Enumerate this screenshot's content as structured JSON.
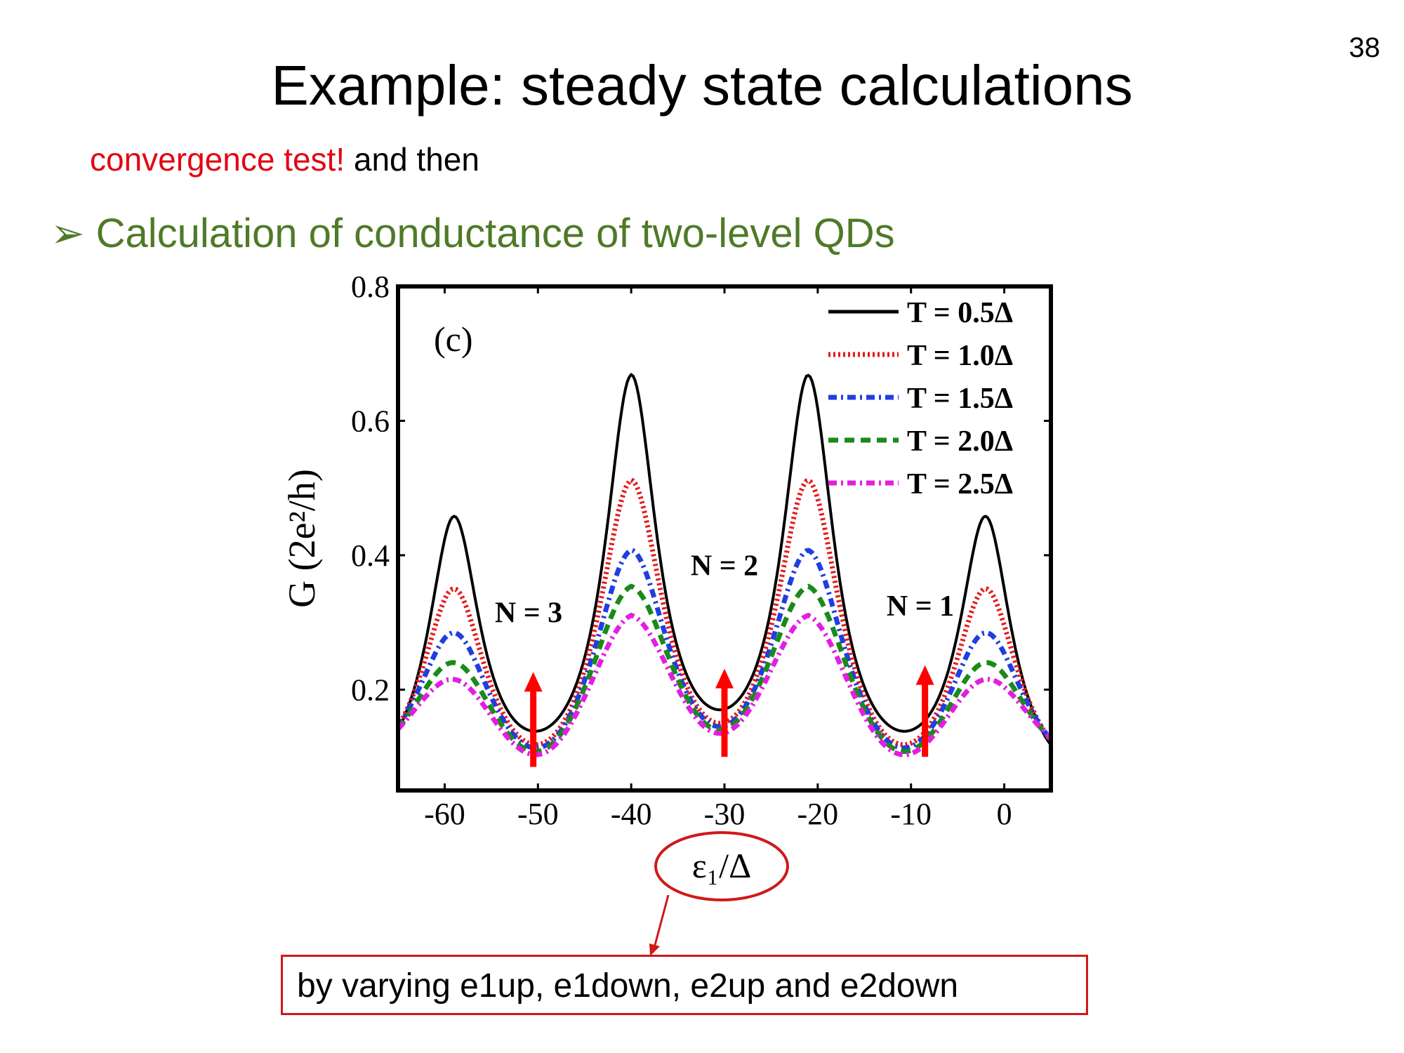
{
  "slide": {
    "number": "38",
    "title": "Example: steady state calculations",
    "note_red": "convergence test!",
    "note_rest": " and then",
    "bullet": "Calculation of conductance of two-level QDs",
    "caption": "by varying e1up, e1down, e2up and e2down"
  },
  "colors": {
    "red": "#e30613",
    "bullet_green": "#4f7a28",
    "box": "#d01919"
  },
  "chart_data": {
    "type": "line",
    "panel_label": "(c)",
    "xlabel": "ε₁/Δ",
    "ylabel": "G (2e²/h)",
    "xlim": [
      -65,
      5
    ],
    "ylim": [
      0.05,
      0.8
    ],
    "xticks": [
      -60,
      -50,
      -40,
      -30,
      -20,
      -10,
      0
    ],
    "yticks": [
      0.2,
      0.4,
      0.6,
      0.8
    ],
    "ytick_labels": [
      "0.2",
      "0.4",
      "0.6",
      "0.8"
    ],
    "legend_position": "top-right",
    "peak_centers": [
      -59,
      -40,
      -21,
      -2
    ],
    "series": [
      {
        "name": "T = 0.5Δ",
        "color": "#000000",
        "dash": "solid",
        "peaks": [
          0.48,
          0.68,
          0.68,
          0.48
        ],
        "valleys": [
          0.14,
          0.17,
          0.14
        ]
      },
      {
        "name": "T = 1.0Δ",
        "color": "#e41a1c",
        "dash": "dot",
        "peaks": [
          0.37,
          0.52,
          0.52,
          0.37
        ],
        "valleys": [
          0.12,
          0.15,
          0.12
        ]
      },
      {
        "name": "T = 1.5Δ",
        "color": "#1f3fe0",
        "dash": "dashdot",
        "peaks": [
          0.3,
          0.41,
          0.41,
          0.3
        ],
        "valleys": [
          0.115,
          0.145,
          0.115
        ]
      },
      {
        "name": "T = 2.0Δ",
        "color": "#1a8a1a",
        "dash": "dash",
        "peaks": [
          0.25,
          0.35,
          0.35,
          0.25
        ],
        "valleys": [
          0.11,
          0.14,
          0.11
        ]
      },
      {
        "name": "T = 2.5Δ",
        "color": "#e21ee2",
        "dash": "dashdot",
        "peaks": [
          0.22,
          0.3,
          0.3,
          0.22
        ],
        "valleys": [
          0.105,
          0.135,
          0.105
        ]
      }
    ],
    "annotations": [
      {
        "text": "N = 3",
        "label_x": -51,
        "label_y": 0.3,
        "arrow_x": -50.5,
        "arrow_from": 0.085,
        "arrow_to": 0.22
      },
      {
        "text": "N = 2",
        "label_x": -30,
        "label_y": 0.37,
        "arrow_x": -30,
        "arrow_from": 0.1,
        "arrow_to": 0.225
      },
      {
        "text": "N = 1",
        "label_x": -9,
        "label_y": 0.31,
        "arrow_x": -8.5,
        "arrow_from": 0.1,
        "arrow_to": 0.23
      }
    ]
  }
}
